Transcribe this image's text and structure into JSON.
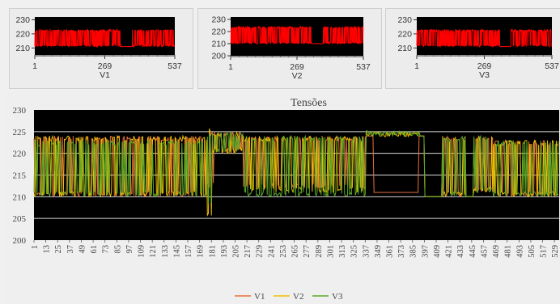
{
  "small_charts": [
    {
      "id": "V1",
      "xlabel": "V1",
      "y_ticks": [
        "230",
        "220",
        "210"
      ],
      "x_ticks": [
        "1",
        "269",
        "537"
      ],
      "ylim": [
        205,
        232
      ],
      "line_color": "#ff0000",
      "background": "#000000"
    },
    {
      "id": "V2",
      "xlabel": "V2",
      "y_ticks": [
        "230",
        "220",
        "210",
        "200"
      ],
      "x_ticks": [
        "1",
        "269",
        "537"
      ],
      "ylim": [
        200,
        232
      ],
      "line_color": "#ff0000",
      "background": "#000000"
    },
    {
      "id": "V3",
      "xlabel": "V3",
      "y_ticks": [
        "230",
        "220",
        "210"
      ],
      "x_ticks": [
        "1",
        "269",
        "537"
      ],
      "ylim": [
        205,
        232
      ],
      "line_color": "#ff0000",
      "background": "#000000"
    }
  ],
  "chart_data": {
    "type": "line",
    "title": "Tensões",
    "ylim": [
      200,
      230
    ],
    "y_ticks": [
      200,
      205,
      210,
      215,
      220,
      225,
      230
    ],
    "x_tick_labels": [
      "1",
      "13",
      "25",
      "37",
      "49",
      "61",
      "73",
      "85",
      "97",
      "109",
      "121",
      "133",
      "145",
      "157",
      "169",
      "181",
      "193",
      "205",
      "217",
      "229",
      "241",
      "253",
      "265",
      "277",
      "289",
      "301",
      "313",
      "325",
      "337",
      "349",
      "361",
      "373",
      "385",
      "397",
      "409",
      "421",
      "433",
      "445",
      "457",
      "469",
      "481",
      "493",
      "505",
      "517",
      "529"
    ],
    "xlim": [
      1,
      537
    ],
    "grid": "horizontal",
    "legend_position": "bottom-center",
    "background": "#000000",
    "series": [
      {
        "name": "V1",
        "color": "#e8703a",
        "segments": [
          [
            1,
            210,
            224
          ],
          [
            178,
            212,
            225
          ],
          [
            185,
            220,
            225
          ],
          [
            215,
            212,
            224
          ],
          [
            340,
            224,
            224
          ],
          [
            348,
            211,
            211
          ],
          [
            394,
            224,
            224
          ],
          [
            400,
            210,
            210
          ],
          [
            418,
            210,
            224
          ],
          [
            434,
            210,
            224
          ],
          [
            442,
            210,
            210
          ],
          [
            450,
            211,
            224
          ],
          [
            470,
            210,
            223
          ],
          [
            537,
            211,
            223
          ]
        ]
      },
      {
        "name": "V2",
        "color": "#f0c000",
        "segments": [
          [
            1,
            210,
            224
          ],
          [
            178,
            205,
            226
          ],
          [
            183,
            220,
            225
          ],
          [
            215,
            211,
            224
          ],
          [
            340,
            224,
            225
          ],
          [
            395,
            224,
            224
          ],
          [
            400,
            210,
            210
          ],
          [
            418,
            210,
            224
          ],
          [
            434,
            210,
            224
          ],
          [
            442,
            210,
            210
          ],
          [
            450,
            211,
            224
          ],
          [
            470,
            210,
            223
          ],
          [
            537,
            211,
            223
          ]
        ]
      },
      {
        "name": "V3",
        "color": "#5aaa28",
        "segments": [
          [
            1,
            210,
            223
          ],
          [
            178,
            208,
            225
          ],
          [
            183,
            220,
            225
          ],
          [
            215,
            210,
            224
          ],
          [
            340,
            224,
            225
          ],
          [
            395,
            224,
            224
          ],
          [
            400,
            210,
            210
          ],
          [
            418,
            210,
            224
          ],
          [
            434,
            210,
            224
          ],
          [
            442,
            210,
            210
          ],
          [
            450,
            211,
            224
          ],
          [
            470,
            210,
            223
          ],
          [
            537,
            210,
            223
          ]
        ]
      }
    ]
  }
}
